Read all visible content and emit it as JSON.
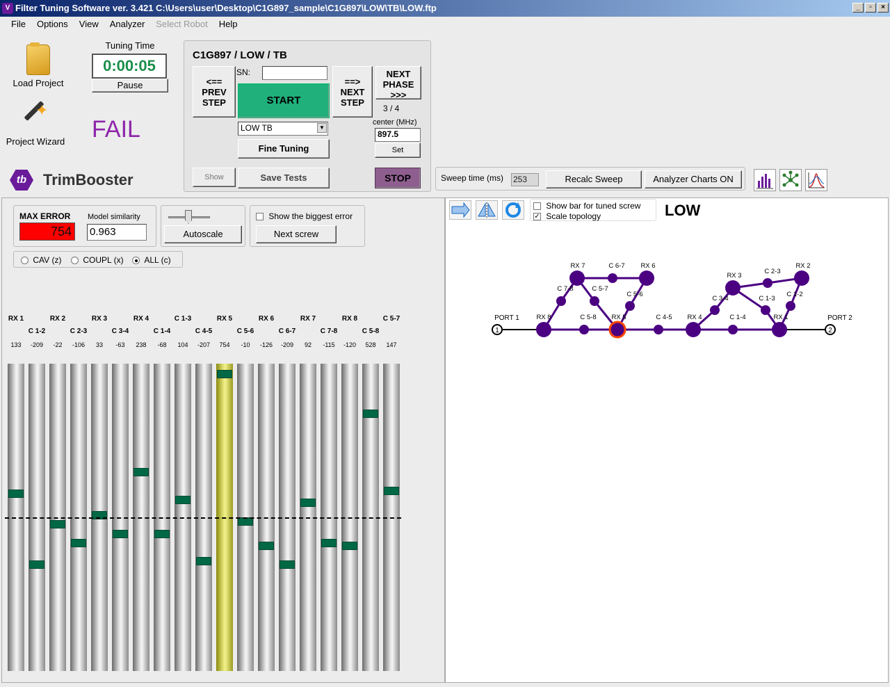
{
  "window": {
    "title": "Filter Tuning Software ver. 3.421    C:\\Users\\user\\Desktop\\C1G897_sample\\C1G897\\LOW\\TB\\LOW.ftp",
    "app_icon": "V"
  },
  "menu": [
    "File",
    "Options",
    "View",
    "Analyzer",
    "Select Robot",
    "Help"
  ],
  "tools": {
    "load_project": "Load Project",
    "project_wizard": "Project Wizard"
  },
  "timer": {
    "title": "Tuning Time",
    "value": "0:00:05",
    "pause": "Pause"
  },
  "status": "FAIL",
  "brand": {
    "logo": "tb",
    "name": "TrimBooster"
  },
  "project": {
    "title": "C1G897 / LOW / TB",
    "prev_step": "<==\nPREV\nSTEP",
    "next_step": "==>\nNEXT\nSTEP",
    "next_phase": "NEXT\nPHASE\n>>>",
    "sn_label": "SN:",
    "sn_value": "",
    "start": "START",
    "phase_counter": "3 / 4",
    "center_label": "center (MHz)",
    "center_value": "897.5",
    "set": "Set",
    "select_value": "LOW TB",
    "fine_tuning": "Fine Tuning",
    "show": "Show",
    "save_tests": "Save Tests",
    "stop": "STOP"
  },
  "sweep": {
    "label": "Sweep time (ms)",
    "value": "253",
    "recalc": "Recalc Sweep",
    "charts": "Analyzer Charts ON"
  },
  "error_panel": {
    "max_error_label": "MAX ERROR",
    "max_error_value": "754",
    "similarity_label": "Model similarity",
    "similarity_value": "0.963",
    "autoscale": "Autoscale",
    "show_biggest": "Show the biggest error",
    "next_screw": "Next screw",
    "radio": [
      "CAV (z)",
      "COUPL (x)",
      "ALL (c)"
    ],
    "radio_selected": 2
  },
  "bars": [
    {
      "label": "RX 1",
      "value": "133",
      "level": 0.41,
      "row": 0
    },
    {
      "label": "C 1-2",
      "value": "-209",
      "level": 0.64,
      "row": 1
    },
    {
      "label": "RX 2",
      "value": "-22",
      "level": 0.51,
      "row": 0
    },
    {
      "label": "C 2-3",
      "value": "-106",
      "level": 0.57,
      "row": 1
    },
    {
      "label": "RX 3",
      "value": "33",
      "level": 0.48,
      "row": 0
    },
    {
      "label": "C 3-4",
      "value": "-63",
      "level": 0.54,
      "row": 1
    },
    {
      "label": "RX 4",
      "value": "238",
      "level": 0.34,
      "row": 0
    },
    {
      "label": "C 1-4",
      "value": "-68",
      "level": 0.54,
      "row": 1
    },
    {
      "label": "C 1-3",
      "value": "104",
      "level": 0.43,
      "row": 0
    },
    {
      "label": "C 4-5",
      "value": "-207",
      "level": 0.63,
      "row": 1
    },
    {
      "label": "RX 5",
      "value": "754",
      "level": 0.02,
      "row": 0,
      "highlight": true
    },
    {
      "label": "C 5-6",
      "value": "-10",
      "level": 0.5,
      "row": 1
    },
    {
      "label": "RX 6",
      "value": "-126",
      "level": 0.58,
      "row": 0
    },
    {
      "label": "C 6-7",
      "value": "-209",
      "level": 0.64,
      "row": 1
    },
    {
      "label": "RX 7",
      "value": "92",
      "level": 0.44,
      "row": 0
    },
    {
      "label": "C 7-8",
      "value": "-115",
      "level": 0.57,
      "row": 1
    },
    {
      "label": "RX 8",
      "value": "-120",
      "level": 0.58,
      "row": 0
    },
    {
      "label": "C 5-8",
      "value": "528",
      "level": 0.15,
      "row": 1
    },
    {
      "label": "C 5-7",
      "value": "147",
      "level": 0.4,
      "row": 0
    }
  ],
  "topology": {
    "show_bar_label": "Show bar for tuned screw",
    "show_bar_checked": false,
    "scale_label": "Scale topology",
    "scale_checked": true,
    "title": "LOW",
    "port1": "PORT 1",
    "port2": "PORT 2",
    "port1_num": "1",
    "port2_num": "2",
    "node_color": "#4b0082",
    "selected_color": "#ff4500",
    "nodes": [
      {
        "label": "RX 8"
      },
      {
        "label": "C 5-8"
      },
      {
        "label": "RX 5"
      },
      {
        "label": "C 4-5"
      },
      {
        "label": "RX 4"
      },
      {
        "label": "C 1-4"
      },
      {
        "label": "RX 1"
      },
      {
        "label": "RX 7"
      },
      {
        "label": "C 6-7"
      },
      {
        "label": "RX 6"
      },
      {
        "label": "C 7-8"
      },
      {
        "label": "C 5-7"
      },
      {
        "label": "C 5-6"
      },
      {
        "label": "RX 3"
      },
      {
        "label": "C 2-3"
      },
      {
        "label": "RX 2"
      },
      {
        "label": "C 3-4"
      },
      {
        "label": "C 1-3"
      },
      {
        "label": "C 1-2"
      }
    ]
  },
  "icons": [
    "folder-icon",
    "wand-icon",
    "bar-chart-icon",
    "topology-icon",
    "curve-icon",
    "arrow-right-icon",
    "mirror-icon",
    "refresh-icon"
  ]
}
